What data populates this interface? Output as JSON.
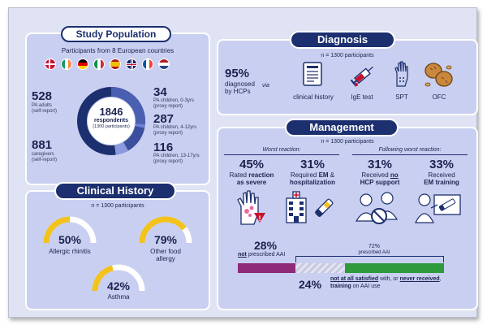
{
  "study_population": {
    "title": "Study Population",
    "subtitle": "Participants from 8 European countries",
    "flags": [
      "denmark-flag",
      "ireland-flag",
      "germany-flag",
      "italy-flag",
      "spain-flag",
      "uk-flag",
      "france-flag",
      "netherlands-flag"
    ],
    "center_value": "1846",
    "center_label": "respondents",
    "center_sub": "(1300 participants)",
    "left_groups": [
      {
        "value": "528",
        "label": "PA adults",
        "sub": "(self-report)"
      },
      {
        "value": "881",
        "label": "caregivers",
        "sub": "(self-report)"
      }
    ],
    "right_groups": [
      {
        "value": "34",
        "label": "PA children, 0-3yrs",
        "sub": "(proxy report)"
      },
      {
        "value": "287",
        "label": "PA children, 4-12yrs",
        "sub": "(proxy report)"
      },
      {
        "value": "116",
        "label": "PA children, 13-17yrs",
        "sub": "(proxy report)"
      }
    ]
  },
  "clinical_history": {
    "title": "Clinical History",
    "n_label": "n = 1300 participants",
    "items": [
      {
        "value": "50%",
        "label": "Allergic rhinitis",
        "fraction": 0.5
      },
      {
        "value": "79%",
        "label": "Other food",
        "label2": "allergy",
        "fraction": 0.79
      },
      {
        "value": "42%",
        "label": "Asthma",
        "fraction": 0.42
      }
    ]
  },
  "diagnosis": {
    "title": "Diagnosis",
    "n_label": "n = 1300 participants",
    "value": "95%",
    "label_lines": [
      "diagnosed",
      "by HCPs"
    ],
    "via": "via",
    "methods": [
      "clinical history",
      "IgE test",
      "SPT",
      "OFC"
    ]
  },
  "management": {
    "title": "Management",
    "n_label": "n = 1300 participants",
    "worst_header": "Worst reaction:",
    "following_header": "Following worst reaction:",
    "stats": [
      {
        "value": "45%",
        "l1a": "Rated ",
        "l1b": "reaction",
        "l2": "as severe"
      },
      {
        "value": "31%",
        "l1": "Required ",
        "l1b": "EM",
        "l1c": " &",
        "l2": "hospitalization"
      },
      {
        "value": "31%",
        "l1": "Received ",
        "l1b": "no",
        "l2": "HCP support"
      },
      {
        "value": "33%",
        "l1": "Received",
        "l2": "EM training"
      }
    ],
    "aai": {
      "not_prescribed_value": "28%",
      "not_prescribed_word": "not",
      "not_prescribed_rest": " prescribed AAI",
      "prescribed_value": "72%",
      "prescribed_label": "prescribed AAI",
      "unsatisfied_value": "24%",
      "unsatisfied_p1": "not at all satisfied",
      "unsatisfied_p2": " with, or ",
      "unsatisfied_p3": "never received",
      "unsatisfied_p4": ",",
      "unsatisfied_p5": "training",
      "unsatisfied_p6": " on AAI use",
      "fractions": {
        "not_prescribed": 0.28,
        "unsatisfied": 0.24,
        "satisfied": 0.48
      }
    },
    "colors": {
      "not_prescribed": "#8e2a78",
      "unsatisfied": "#c8cbe0",
      "satisfied": "#2f9a3c"
    }
  }
}
